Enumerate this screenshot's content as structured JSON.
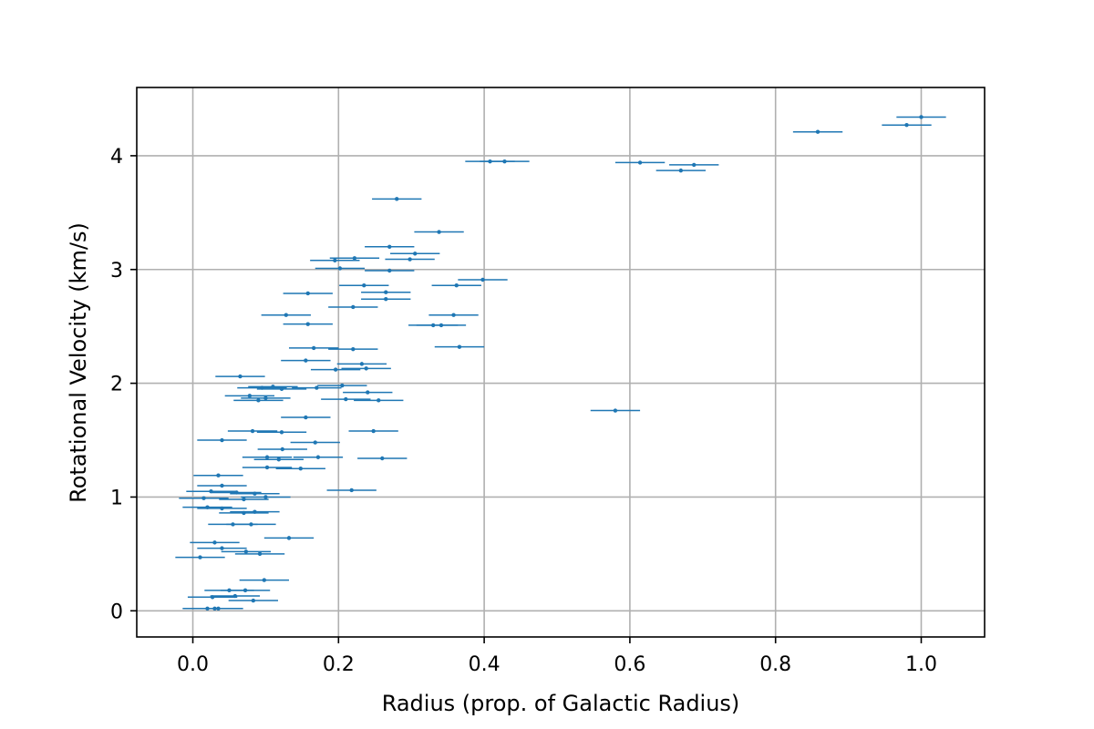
{
  "chart_data": {
    "type": "scatter",
    "title": "",
    "xlabel": "Radius (prop. of Galactic Radius)",
    "ylabel": "Rotational Velocity (km/s)",
    "xlim": [
      -0.077,
      1.087
    ],
    "ylim": [
      -0.23,
      4.6
    ],
    "xticks": [
      0.0,
      0.2,
      0.4,
      0.6,
      0.8,
      1.0
    ],
    "xtick_labels": [
      "0.0",
      "0.2",
      "0.4",
      "0.6",
      "0.8",
      "1.0"
    ],
    "yticks": [
      0,
      1,
      2,
      3,
      4
    ],
    "ytick_labels": [
      "0",
      "1",
      "2",
      "3",
      "4"
    ],
    "grid": true,
    "marker_color": "#1f77b4",
    "x_error": 0.034,
    "points": [
      {
        "x": 1.0,
        "y": 4.34
      },
      {
        "x": 0.98,
        "y": 4.27
      },
      {
        "x": 0.858,
        "y": 4.21
      },
      {
        "x": 0.614,
        "y": 3.94
      },
      {
        "x": 0.688,
        "y": 3.92
      },
      {
        "x": 0.67,
        "y": 3.87
      },
      {
        "x": 0.408,
        "y": 3.95
      },
      {
        "x": 0.428,
        "y": 3.95
      },
      {
        "x": 0.28,
        "y": 3.62
      },
      {
        "x": 0.338,
        "y": 3.33
      },
      {
        "x": 0.27,
        "y": 3.2
      },
      {
        "x": 0.305,
        "y": 3.14
      },
      {
        "x": 0.298,
        "y": 3.09
      },
      {
        "x": 0.195,
        "y": 3.08
      },
      {
        "x": 0.222,
        "y": 3.1
      },
      {
        "x": 0.202,
        "y": 3.01
      },
      {
        "x": 0.27,
        "y": 2.99
      },
      {
        "x": 0.398,
        "y": 2.91
      },
      {
        "x": 0.235,
        "y": 2.86
      },
      {
        "x": 0.362,
        "y": 2.86
      },
      {
        "x": 0.265,
        "y": 2.8
      },
      {
        "x": 0.158,
        "y": 2.79
      },
      {
        "x": 0.265,
        "y": 2.74
      },
      {
        "x": 0.22,
        "y": 2.67
      },
      {
        "x": 0.128,
        "y": 2.6
      },
      {
        "x": 0.358,
        "y": 2.6
      },
      {
        "x": 0.158,
        "y": 2.52
      },
      {
        "x": 0.33,
        "y": 2.51
      },
      {
        "x": 0.341,
        "y": 2.51
      },
      {
        "x": 0.166,
        "y": 2.31
      },
      {
        "x": 0.22,
        "y": 2.3
      },
      {
        "x": 0.366,
        "y": 2.32
      },
      {
        "x": 0.155,
        "y": 2.2
      },
      {
        "x": 0.232,
        "y": 2.17
      },
      {
        "x": 0.196,
        "y": 2.12
      },
      {
        "x": 0.238,
        "y": 2.13
      },
      {
        "x": 0.065,
        "y": 2.06
      },
      {
        "x": 0.11,
        "y": 1.97
      },
      {
        "x": 0.095,
        "y": 1.96
      },
      {
        "x": 0.122,
        "y": 1.95
      },
      {
        "x": 0.17,
        "y": 1.96
      },
      {
        "x": 0.205,
        "y": 1.98
      },
      {
        "x": 0.24,
        "y": 1.92
      },
      {
        "x": 0.078,
        "y": 1.89
      },
      {
        "x": 0.09,
        "y": 1.85
      },
      {
        "x": 0.1,
        "y": 1.87
      },
      {
        "x": 0.21,
        "y": 1.86
      },
      {
        "x": 0.255,
        "y": 1.85
      },
      {
        "x": 0.58,
        "y": 1.76
      },
      {
        "x": 0.155,
        "y": 1.7
      },
      {
        "x": 0.082,
        "y": 1.58
      },
      {
        "x": 0.122,
        "y": 1.57
      },
      {
        "x": 0.248,
        "y": 1.58
      },
      {
        "x": 0.04,
        "y": 1.5
      },
      {
        "x": 0.168,
        "y": 1.48
      },
      {
        "x": 0.123,
        "y": 1.42
      },
      {
        "x": 0.102,
        "y": 1.35
      },
      {
        "x": 0.118,
        "y": 1.33
      },
      {
        "x": 0.172,
        "y": 1.35
      },
      {
        "x": 0.26,
        "y": 1.34
      },
      {
        "x": 0.102,
        "y": 1.26
      },
      {
        "x": 0.148,
        "y": 1.25
      },
      {
        "x": 0.035,
        "y": 1.19
      },
      {
        "x": 0.04,
        "y": 1.1
      },
      {
        "x": 0.025,
        "y": 1.05
      },
      {
        "x": 0.06,
        "y": 1.04
      },
      {
        "x": 0.085,
        "y": 1.03
      },
      {
        "x": 0.218,
        "y": 1.06
      },
      {
        "x": 0.015,
        "y": 0.99
      },
      {
        "x": 0.07,
        "y": 0.98
      },
      {
        "x": 0.1,
        "y": 1.0
      },
      {
        "x": 0.02,
        "y": 0.91
      },
      {
        "x": 0.04,
        "y": 0.9
      },
      {
        "x": 0.07,
        "y": 0.86
      },
      {
        "x": 0.085,
        "y": 0.87
      },
      {
        "x": 0.055,
        "y": 0.76
      },
      {
        "x": 0.08,
        "y": 0.76
      },
      {
        "x": 0.132,
        "y": 0.64
      },
      {
        "x": 0.03,
        "y": 0.6
      },
      {
        "x": 0.04,
        "y": 0.55
      },
      {
        "x": 0.073,
        "y": 0.52
      },
      {
        "x": 0.092,
        "y": 0.5
      },
      {
        "x": 0.01,
        "y": 0.47
      },
      {
        "x": 0.098,
        "y": 0.27
      },
      {
        "x": 0.05,
        "y": 0.18
      },
      {
        "x": 0.072,
        "y": 0.18
      },
      {
        "x": 0.027,
        "y": 0.12
      },
      {
        "x": 0.058,
        "y": 0.13
      },
      {
        "x": 0.083,
        "y": 0.09
      },
      {
        "x": 0.02,
        "y": 0.02
      },
      {
        "x": 0.03,
        "y": 0.02
      },
      {
        "x": 0.035,
        "y": 0.02
      }
    ]
  }
}
